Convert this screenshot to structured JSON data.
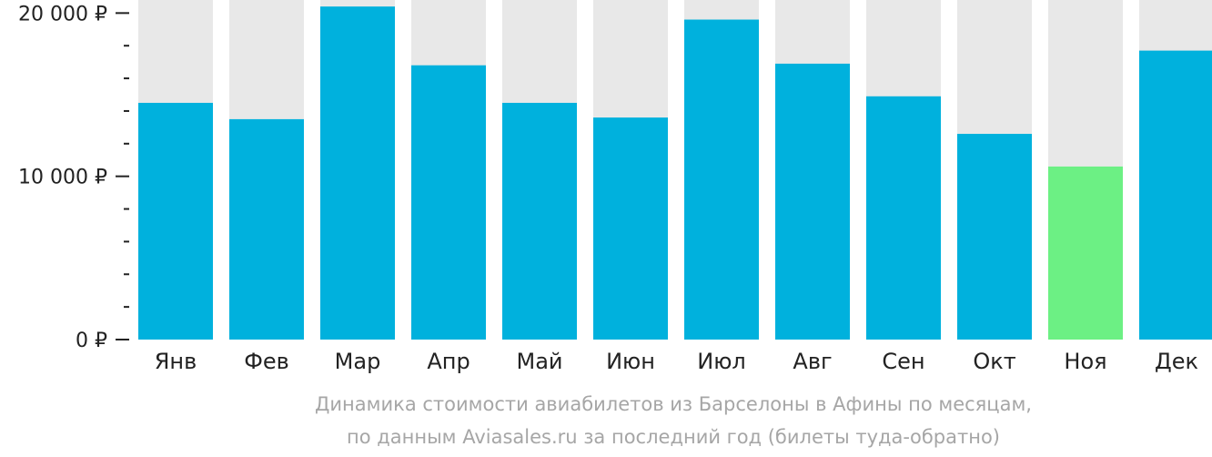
{
  "chart_data": {
    "type": "bar",
    "categories": [
      "Янв",
      "Фев",
      "Мар",
      "Апр",
      "Май",
      "Июн",
      "Июл",
      "Авг",
      "Сен",
      "Окт",
      "Ноя",
      "Дек"
    ],
    "values": [
      14500,
      13500,
      20400,
      16800,
      14500,
      13600,
      19600,
      16900,
      14900,
      12600,
      10600,
      17700
    ],
    "highlight_index": 10,
    "ylim": [
      0,
      20800
    ],
    "yticks": [
      {
        "value": 0,
        "label": "0 ₽"
      },
      {
        "value": 10000,
        "label": "10 000 ₽"
      },
      {
        "value": 20000,
        "label": "20 000 ₽"
      }
    ],
    "minor_tick_step": 2000,
    "colors": {
      "bar": "#00b1dd",
      "highlight": "#6cf084",
      "background_bar": "#e8e8e8",
      "axis": "#222222"
    }
  },
  "caption": {
    "line1": "Динамика стоимости авиабилетов из Барселоны в Афины по месяцам,",
    "line2": "по данным Aviasales.ru за последний год (билеты туда-обратно)"
  }
}
